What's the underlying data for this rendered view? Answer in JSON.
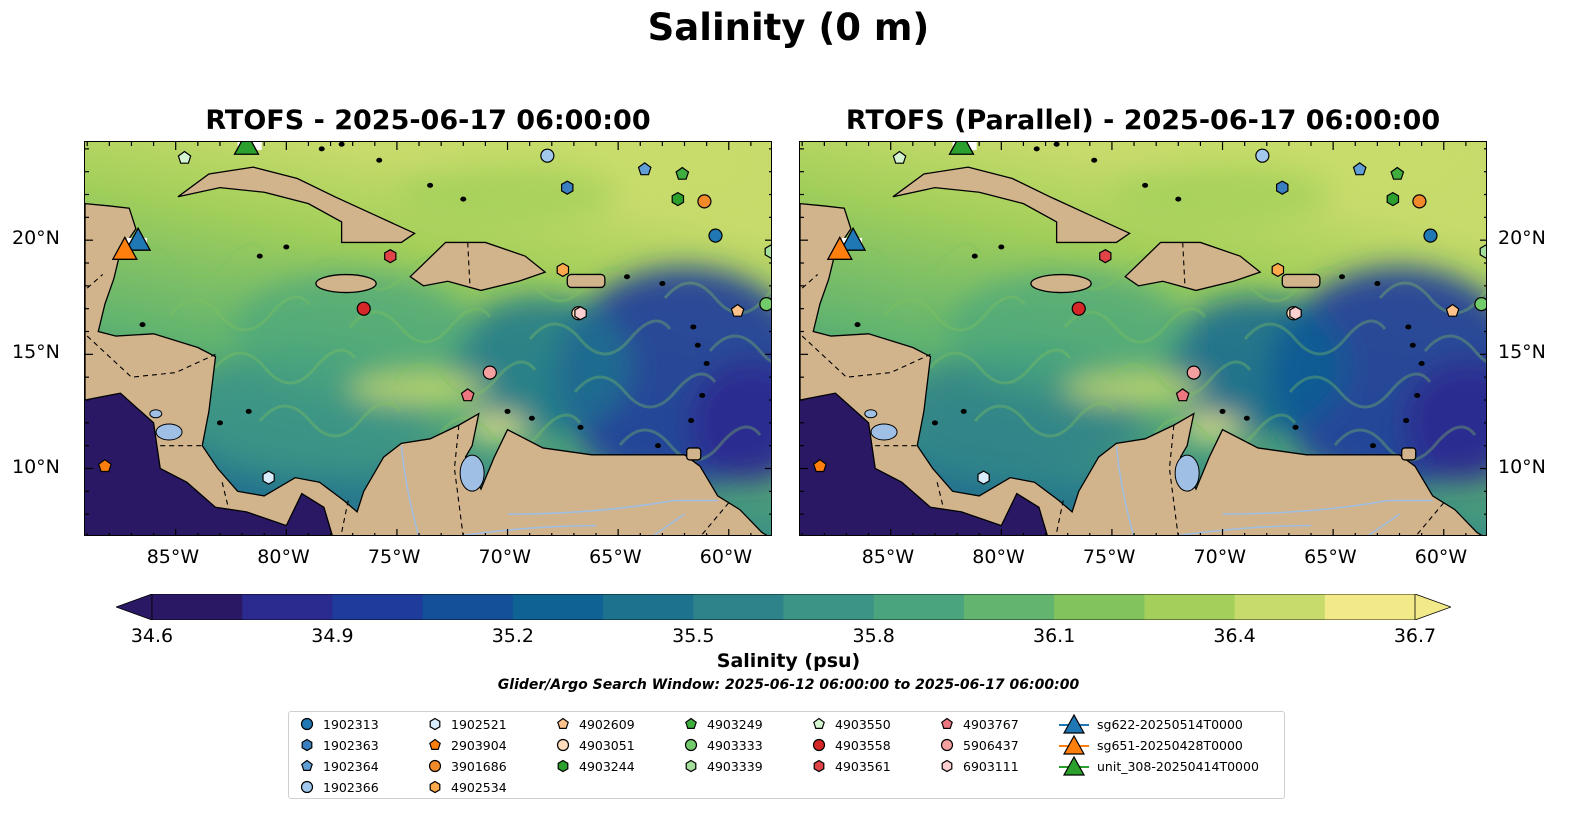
{
  "figure": {
    "title": "Salinity (0 m)",
    "panels": [
      {
        "title": "RTOFS - 2025-06-17 06:00:00"
      },
      {
        "title": "RTOFS (Parallel) - 2025-06-17 06:00:00"
      }
    ],
    "lon_ticks": [
      "85°W",
      "80°W",
      "75°W",
      "70°W",
      "65°W",
      "60°W"
    ],
    "lat_ticks": [
      "20°N",
      "15°N",
      "10°N"
    ],
    "colorbar": {
      "label": "Salinity (psu)",
      "ticks": [
        "34.6",
        "34.9",
        "35.2",
        "35.5",
        "35.8",
        "36.1",
        "36.4",
        "36.7"
      ],
      "min": 34.6,
      "max": 36.7,
      "colormap": "haline"
    },
    "search_window": "Glider/Argo Search Window: 2025-06-12 06:00:00 to 2025-06-17 06:00:00"
  },
  "legend": [
    {
      "label": "1902313",
      "marker": "circle",
      "color": "#1f77b4"
    },
    {
      "label": "1902363",
      "marker": "hexagon",
      "color": "#3a7fc0"
    },
    {
      "label": "1902364",
      "marker": "pentagon",
      "color": "#5f9fd6"
    },
    {
      "label": "1902366",
      "marker": "circle",
      "color": "#a3c8ee"
    },
    {
      "label": "1902521",
      "marker": "hexagon",
      "color": "#d9ecfb"
    },
    {
      "label": "2903904",
      "marker": "pentagon",
      "color": "#ff7f0e"
    },
    {
      "label": "3901686",
      "marker": "circle",
      "color": "#f08a2a"
    },
    {
      "label": "4902534",
      "marker": "hexagon",
      "color": "#ffa94d"
    },
    {
      "label": "4902609",
      "marker": "pentagon",
      "color": "#ffc28a"
    },
    {
      "label": "4903051",
      "marker": "circle",
      "color": "#ffdcbc"
    },
    {
      "label": "4903244",
      "marker": "hexagon",
      "color": "#2ca02c"
    },
    {
      "label": "4903249",
      "marker": "pentagon",
      "color": "#3fae3f"
    },
    {
      "label": "4903333",
      "marker": "circle",
      "color": "#73cc6c"
    },
    {
      "label": "4903339",
      "marker": "hexagon",
      "color": "#a4e09c"
    },
    {
      "label": "4903550",
      "marker": "pentagon",
      "color": "#d4f5d0"
    },
    {
      "label": "4903558",
      "marker": "circle",
      "color": "#d62728"
    },
    {
      "label": "4903561",
      "marker": "hexagon",
      "color": "#e04446"
    },
    {
      "label": "4903767",
      "marker": "pentagon",
      "color": "#ec7780"
    },
    {
      "label": "5906437",
      "marker": "circle",
      "color": "#f4a0a0"
    },
    {
      "label": "6903111",
      "marker": "hexagon",
      "color": "#fcd0d0"
    },
    {
      "label": "sg622-20250514T0000",
      "marker": "triangle",
      "color": "#1f77b4"
    },
    {
      "label": "sg651-20250428T0000",
      "marker": "triangle",
      "color": "#ff7f0e"
    },
    {
      "label": "unit_308-20250414T0000",
      "marker": "triangle",
      "color": "#2ca02c"
    }
  ],
  "colors": {
    "land": "#d2b48c",
    "lakes": "#9fbfe4",
    "rivers": "#9fbfe4"
  }
}
